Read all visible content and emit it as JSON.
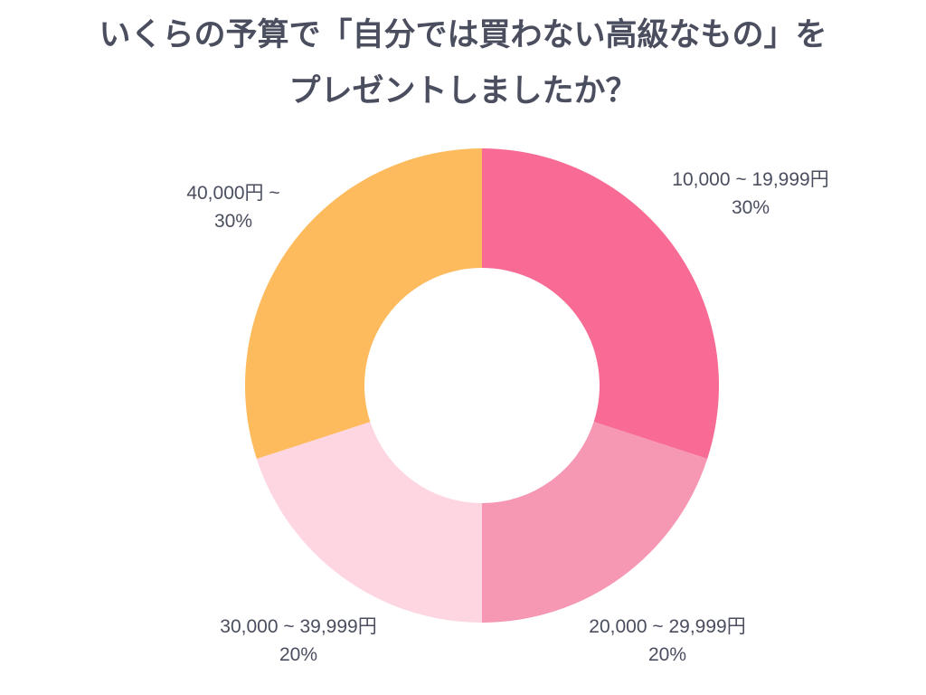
{
  "title": {
    "line1": "いくらの予算で「自分では買わない高級なもの」を",
    "line2": "プレゼントしましたか？"
  },
  "chart_data": {
    "type": "pie",
    "donut": true,
    "slices": [
      {
        "label": "10,000 ~ 19,999円",
        "value": 30,
        "value_label": "30%",
        "color": "#f76b94"
      },
      {
        "label": "20,000 ~ 29,999円",
        "value": 20,
        "value_label": "20%",
        "color": "#f697b4"
      },
      {
        "label": "30,000 ~ 39,999円",
        "value": 20,
        "value_label": "20%",
        "color": "#fdd6e2"
      },
      {
        "label": "40,000円 ~",
        "value": 30,
        "value_label": "30%",
        "color": "#fdbb5d"
      }
    ]
  }
}
